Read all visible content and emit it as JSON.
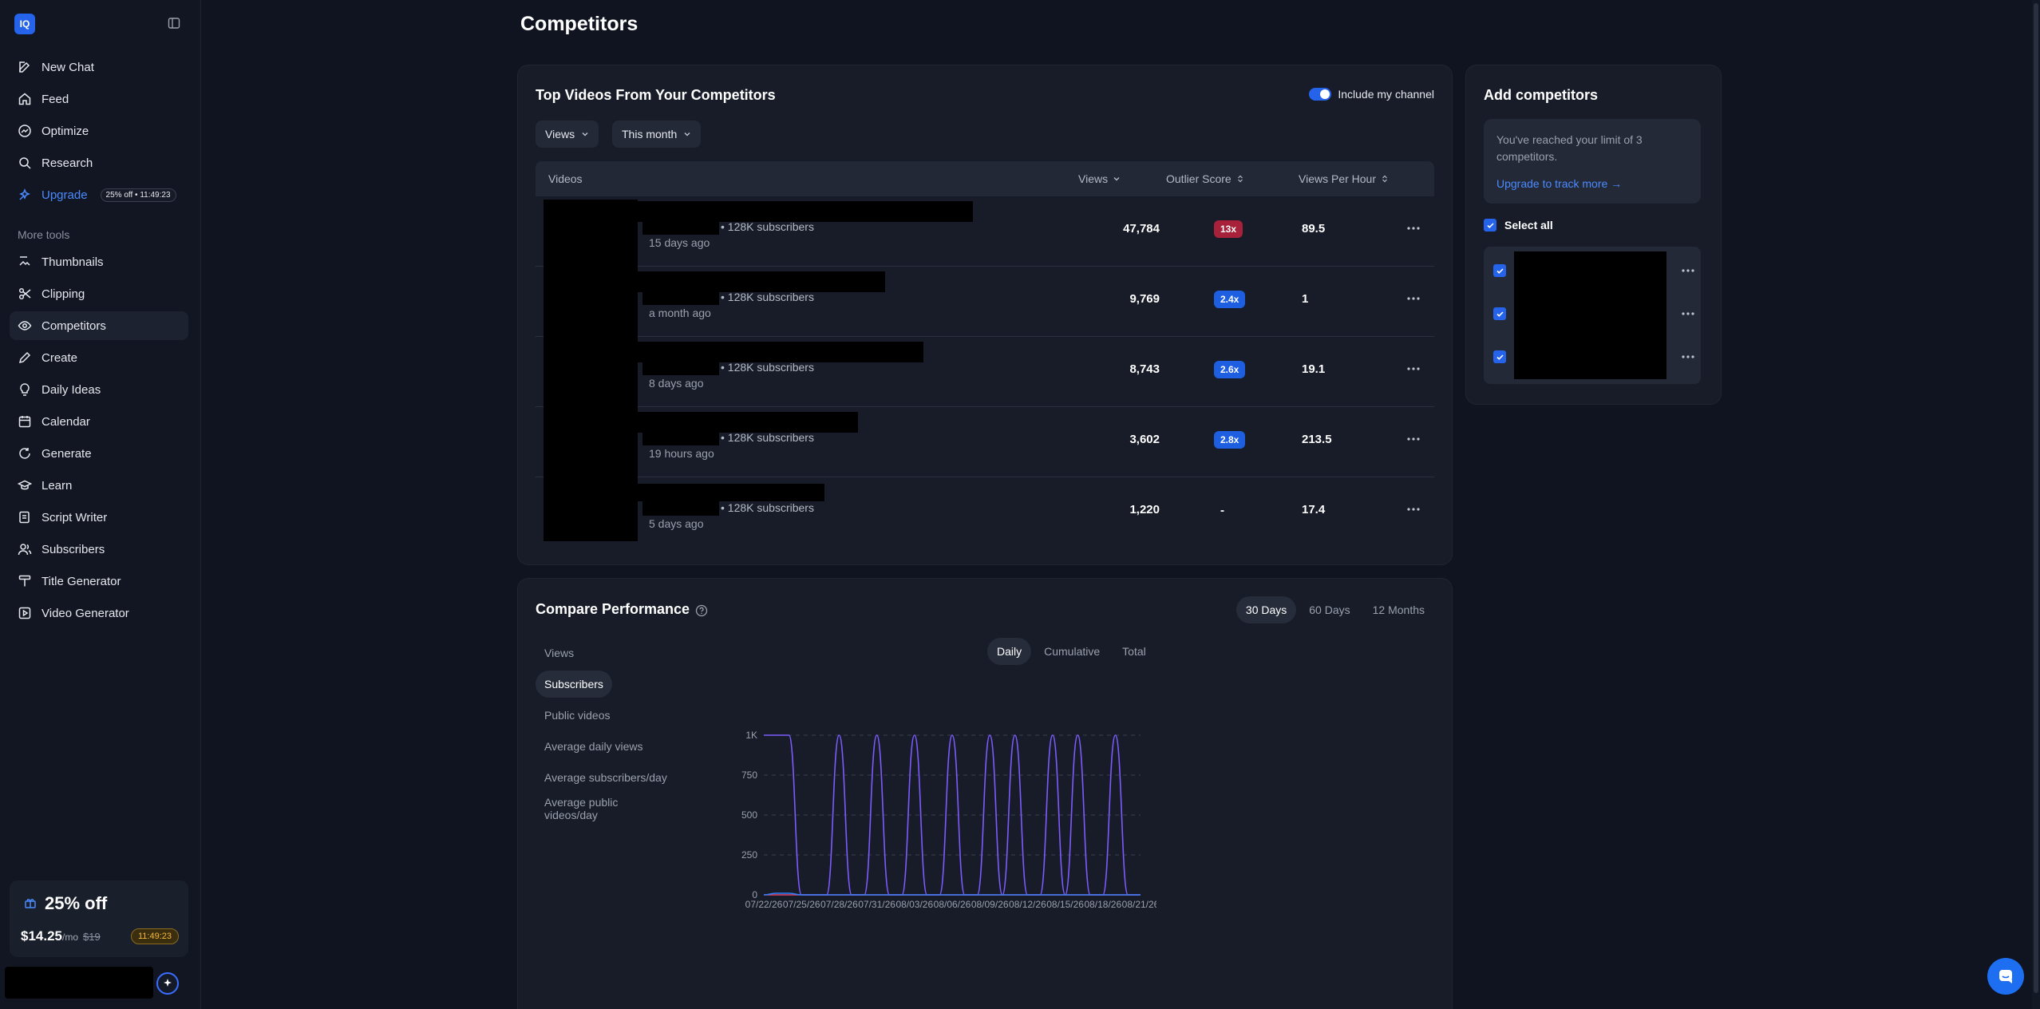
{
  "app": {
    "logo_text": "IQ"
  },
  "sidebar": {
    "items": [
      {
        "label": "New Chat",
        "icon": "edit-icon"
      },
      {
        "label": "Feed",
        "icon": "home-icon"
      },
      {
        "label": "Optimize",
        "icon": "optimize-icon"
      },
      {
        "label": "Research",
        "icon": "search-icon"
      },
      {
        "label": "Upgrade",
        "icon": "sparkle-icon",
        "badge": "25% off • 11:49:23"
      }
    ],
    "more_tools_label": "More tools",
    "tools": [
      {
        "label": "Thumbnails",
        "icon": "image-icon"
      },
      {
        "label": "Clipping",
        "icon": "scissors-icon"
      },
      {
        "label": "Competitors",
        "icon": "eye-icon"
      },
      {
        "label": "Create",
        "icon": "pencil-icon"
      },
      {
        "label": "Daily Ideas",
        "icon": "lightbulb-icon"
      },
      {
        "label": "Calendar",
        "icon": "calendar-icon"
      },
      {
        "label": "Generate",
        "icon": "refresh-icon"
      },
      {
        "label": "Learn",
        "icon": "graduation-cap-icon"
      },
      {
        "label": "Script Writer",
        "icon": "script-icon"
      },
      {
        "label": "Subscribers",
        "icon": "users-icon"
      },
      {
        "label": "Title Generator",
        "icon": "title-icon"
      },
      {
        "label": "Video Generator",
        "icon": "video-icon"
      }
    ],
    "promo": {
      "title": "25% off",
      "price": "$14.25",
      "per": "/mo",
      "old_price": "$19",
      "timer": "11:49:23"
    }
  },
  "page": {
    "title": "Competitors"
  },
  "top_videos": {
    "title": "Top Videos From Your Competitors",
    "toggle_label": "Include my channel",
    "toggle_on": true,
    "filters": {
      "metric": "Views",
      "period": "This month"
    },
    "columns": {
      "videos": "Videos",
      "views": "Views",
      "outlier": "Outlier Score",
      "vph": "Views Per Hour"
    },
    "rows": [
      {
        "subscribers": "• 128K subscribers",
        "ago": "15 days ago",
        "views": "47,784",
        "outlier": "13x",
        "outlier_style": "red",
        "vph": "89.5"
      },
      {
        "subscribers": "• 128K subscribers",
        "ago": "a month ago",
        "views": "9,769",
        "outlier": "2.4x",
        "outlier_style": "blue",
        "vph": "1"
      },
      {
        "subscribers": "• 128K subscribers",
        "ago": "8 days ago",
        "views": "8,743",
        "outlier": "2.6x",
        "outlier_style": "blue",
        "vph": "19.1"
      },
      {
        "subscribers": "• 128K subscribers",
        "ago": "19 hours ago",
        "views": "3,602",
        "outlier": "2.8x",
        "outlier_style": "blue",
        "vph": "213.5"
      },
      {
        "subscribers": "• 128K subscribers",
        "ago": "5 days ago",
        "views": "1,220",
        "outlier": "-",
        "outlier_style": "none",
        "vph": "17.4"
      }
    ]
  },
  "add_competitors": {
    "title": "Add competitors",
    "limit_text": "You've reached your limit of 3 competitors.",
    "upgrade_link": "Upgrade to track more →",
    "select_all": "Select all"
  },
  "compare": {
    "title": "Compare Performance",
    "periods": [
      "30 Days",
      "60 Days",
      "12 Months"
    ],
    "active_period": "30 Days",
    "modes": [
      "Daily",
      "Cumulative",
      "Total"
    ],
    "active_mode": "Daily",
    "metrics": [
      "Views",
      "Subscribers",
      "Public videos",
      "Average daily views",
      "Average subscribers/day",
      "Average public videos/day"
    ],
    "active_metric": "Subscribers"
  },
  "chart_data": {
    "type": "line",
    "ylim": [
      0,
      1000
    ],
    "yticks": [
      "0",
      "250",
      "500",
      "750",
      "1K"
    ],
    "xticks": [
      "07/22/26",
      "07/25/26",
      "07/28/26",
      "07/31/26",
      "08/03/26",
      "08/06/26",
      "08/09/26",
      "08/12/26",
      "08/15/26",
      "08/18/26",
      "08/21/26"
    ],
    "x": [
      "07/22/26",
      "07/23/26",
      "07/24/26",
      "07/25/26",
      "07/26/26",
      "07/27/26",
      "07/28/26",
      "07/29/26",
      "07/30/26",
      "07/31/26",
      "08/01/26",
      "08/02/26",
      "08/03/26",
      "08/04/26",
      "08/05/26",
      "08/06/26",
      "08/07/26",
      "08/08/26",
      "08/09/26",
      "08/10/26",
      "08/11/26",
      "08/12/26",
      "08/13/26",
      "08/14/26",
      "08/15/26",
      "08/16/26",
      "08/17/26",
      "08/18/26",
      "08/19/26",
      "08/20/26",
      "08/21/26"
    ],
    "series": [
      {
        "color": "#7c5cff",
        "values": [
          1000,
          1000,
          1000,
          0,
          0,
          0,
          1000,
          0,
          0,
          1000,
          0,
          0,
          1000,
          0,
          0,
          1000,
          0,
          0,
          1000,
          0,
          1000,
          0,
          0,
          1000,
          0,
          1000,
          0,
          0,
          1000,
          0,
          0
        ]
      },
      {
        "color": "#e0456e",
        "values": [
          0,
          0,
          0,
          0,
          0,
          0,
          0,
          0,
          0,
          0,
          0,
          0,
          0,
          0,
          0,
          0,
          0,
          0,
          0,
          0,
          0,
          0,
          0,
          0,
          0,
          0,
          0,
          0,
          0,
          0,
          0
        ]
      },
      {
        "color": "#2f80ff",
        "values": [
          0,
          10,
          10,
          0,
          0,
          0,
          0,
          0,
          0,
          0,
          0,
          0,
          0,
          0,
          0,
          0,
          0,
          0,
          0,
          0,
          0,
          0,
          0,
          0,
          0,
          0,
          0,
          0,
          0,
          0,
          0
        ]
      }
    ]
  }
}
